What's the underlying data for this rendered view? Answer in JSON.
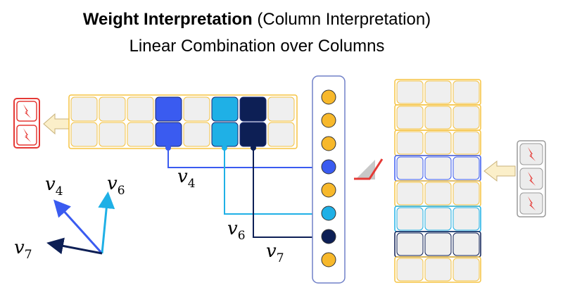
{
  "title": {
    "bold": "Weight Interpretation",
    "rest": " (Column Interpretation)",
    "subtitle": "Linear Combination over Columns"
  },
  "labels": {
    "v4_small": "v",
    "v4_sub": "4",
    "v6_small": "v",
    "v6_sub": "6",
    "v7_small": "v",
    "v7_sub": "7"
  },
  "colors": {
    "cell_border": "#f5c342",
    "cell_fill": "#efefef",
    "v4": "#3a5bf0",
    "v6": "#1fb0e6",
    "v7": "#0d1f55",
    "neuron": "#f7b82b",
    "spark_red": "#e53935"
  }
}
